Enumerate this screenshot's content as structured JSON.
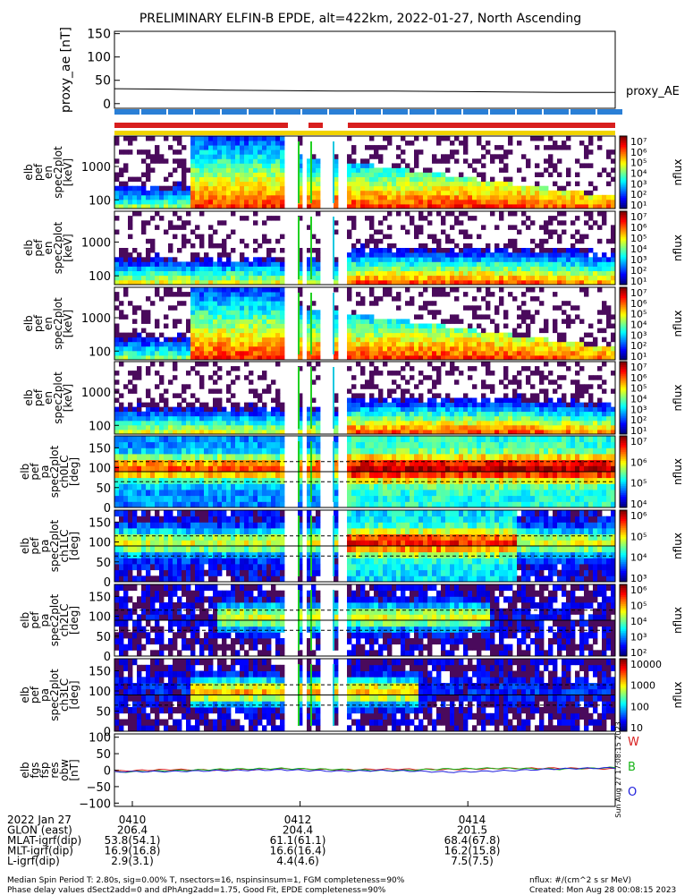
{
  "title": "PRELIMINARY ELFIN-B EPDE, alt=422km, 2022-01-27, North Ascending",
  "colors": {
    "bar_blue": "#2a7fd6",
    "bar_red": "#d81e1e",
    "bar_yellow": "#f1d400",
    "comp_w": "#d81e1e",
    "comp_b": "#18b418",
    "comp_o": "#1e1edc"
  },
  "chart_data": [
    {
      "type": "line",
      "panel": "proxy_ae",
      "ylabel": "proxy_ae [nT]",
      "legend": "proxy_AE",
      "yticks": [
        "150",
        "100",
        "50",
        "0"
      ],
      "ylim": [
        -10,
        155
      ],
      "x_minutes": [
        0,
        1,
        2,
        3,
        4,
        5,
        6,
        7,
        8,
        9
      ],
      "series": [
        {
          "values": [
            32,
            31,
            29,
            28,
            27,
            27,
            26,
            25,
            24,
            24
          ]
        }
      ]
    },
    {
      "type": "heatmap",
      "panel": "en-1",
      "ylabel": [
        "elb",
        "pef",
        "en",
        "spec2plot",
        "[keV]"
      ],
      "yticks": [
        "1000",
        "100"
      ],
      "scale": "log",
      "colorbar": {
        "label": "nflux",
        "ticks": [
          "10⁷",
          "10⁶",
          "10⁵",
          "10⁴",
          "10³",
          "10²",
          "10¹"
        ]
      }
    },
    {
      "type": "heatmap",
      "panel": "en-2",
      "ylabel": [
        "elb",
        "pef",
        "en",
        "spec2plot",
        "[keV]"
      ],
      "yticks": [
        "1000",
        "100"
      ],
      "scale": "log",
      "colorbar": {
        "label": "nflux",
        "ticks": [
          "10⁷",
          "10⁶",
          "10⁵",
          "10⁴",
          "10³",
          "10²",
          "10¹"
        ]
      }
    },
    {
      "type": "heatmap",
      "panel": "en-3",
      "ylabel": [
        "elb",
        "pef",
        "en",
        "spec2plot",
        "[keV]"
      ],
      "yticks": [
        "1000",
        "100"
      ],
      "scale": "log",
      "colorbar": {
        "label": "nflux",
        "ticks": [
          "10⁷",
          "10⁶",
          "10⁵",
          "10⁴",
          "10³",
          "10²",
          "10¹"
        ]
      }
    },
    {
      "type": "heatmap",
      "panel": "en-4",
      "ylabel": [
        "elb",
        "pef",
        "en",
        "spec2plot",
        "[keV]"
      ],
      "yticks": [
        "1000",
        "100"
      ],
      "scale": "log",
      "colorbar": {
        "label": "nflux",
        "ticks": [
          "10⁷",
          "10⁶",
          "10⁵",
          "10⁴",
          "10³",
          "10²",
          "10¹"
        ]
      }
    },
    {
      "type": "heatmap",
      "panel": "ch0LC",
      "ylabel": [
        "elb",
        "pef",
        "pa",
        "spec2plot",
        "ch0LC",
        "[deg]"
      ],
      "yticks": [
        "150",
        "100",
        "50",
        "0"
      ],
      "ylim": [
        0,
        180
      ],
      "colorbar": {
        "label": "nflux",
        "ticks": [
          "10⁷",
          "10⁶",
          "10⁵",
          "10⁴"
        ]
      }
    },
    {
      "type": "heatmap",
      "panel": "ch1LC",
      "ylabel": [
        "elb",
        "pef",
        "pa",
        "spec2plot",
        "ch1LC",
        "[deg]"
      ],
      "yticks": [
        "150",
        "100",
        "50",
        "0"
      ],
      "ylim": [
        0,
        180
      ],
      "colorbar": {
        "label": "nflux",
        "ticks": [
          "10⁶",
          "10⁵",
          "10⁴",
          "10³"
        ]
      }
    },
    {
      "type": "heatmap",
      "panel": "ch2LC",
      "ylabel": [
        "elb",
        "pef",
        "pa",
        "spec2plot",
        "ch2LC",
        "[deg]"
      ],
      "yticks": [
        "150",
        "100",
        "50",
        "0"
      ],
      "ylim": [
        0,
        180
      ],
      "colorbar": {
        "label": "nflux",
        "ticks": [
          "10⁶",
          "10⁵",
          "10⁴",
          "10³",
          "10²"
        ]
      }
    },
    {
      "type": "heatmap",
      "panel": "ch3LC",
      "ylabel": [
        "elb",
        "pef",
        "pa",
        "spec2plot",
        "ch3LC",
        "[deg]"
      ],
      "yticks": [
        "150",
        "100",
        "50",
        "0"
      ],
      "ylim": [
        0,
        180
      ],
      "colorbar": {
        "label": "nflux",
        "ticks": [
          "10000",
          "1000",
          "100",
          "10"
        ]
      }
    },
    {
      "type": "line",
      "panel": "fgs",
      "ylabel": [
        "elb",
        "fgs",
        "fsp",
        "res",
        "obw",
        "[nT]"
      ],
      "yticks": [
        "100",
        "50",
        "0",
        "−50",
        "−100"
      ],
      "ylim": [
        -110,
        110
      ],
      "legend": [
        "W",
        "B",
        "O"
      ],
      "series": [
        {
          "name": "W",
          "values": [
            -3,
            2,
            0,
            4,
            1,
            3,
            2,
            5,
            6,
            4
          ]
        },
        {
          "name": "B",
          "values": [
            -6,
            -2,
            3,
            5,
            2,
            -2,
            4,
            6,
            3,
            8
          ]
        },
        {
          "name": "O",
          "values": [
            -5,
            -4,
            -1,
            1,
            -3,
            -1,
            -6,
            -2,
            4,
            7
          ]
        }
      ]
    }
  ],
  "timestamp_stamp": "Sun Aug 27 17:08:15 2023",
  "axis_table": {
    "rows": [
      {
        "label": "2022 Jan 27",
        "values": [
          "0410",
          "0412",
          "0414"
        ]
      },
      {
        "label": "GLON (east)",
        "values": [
          "206.4",
          "204.4",
          "201.5"
        ]
      },
      {
        "label": "MLAT-igrf(dip)",
        "values": [
          "53.8(54.1)",
          "61.1(61.1)",
          "68.4(67.8)"
        ]
      },
      {
        "label": "MLT-igrf(dip)",
        "values": [
          "16.9(16.8)",
          "16.6(16.4)",
          "16.2(15.8)"
        ]
      },
      {
        "label": "L-igrf(dip)",
        "values": [
          "2.9(3.1)",
          "4.4(4.6)",
          "7.5(7.5)"
        ]
      }
    ]
  },
  "footer": {
    "line1": "Median Spin Period T: 2.80s, sig=0.00% T, nsectors=16, nspinsinsum=1, FGM completeness=90%",
    "line2": "Phase delay values dSect2add=0 and dPhAng2add=1.75, Good Fit, EPDE completeness=90%",
    "units": "nflux: #/(cm^2 s sr MeV)",
    "created": "Created: Mon Aug 28 00:08:15 2023"
  }
}
